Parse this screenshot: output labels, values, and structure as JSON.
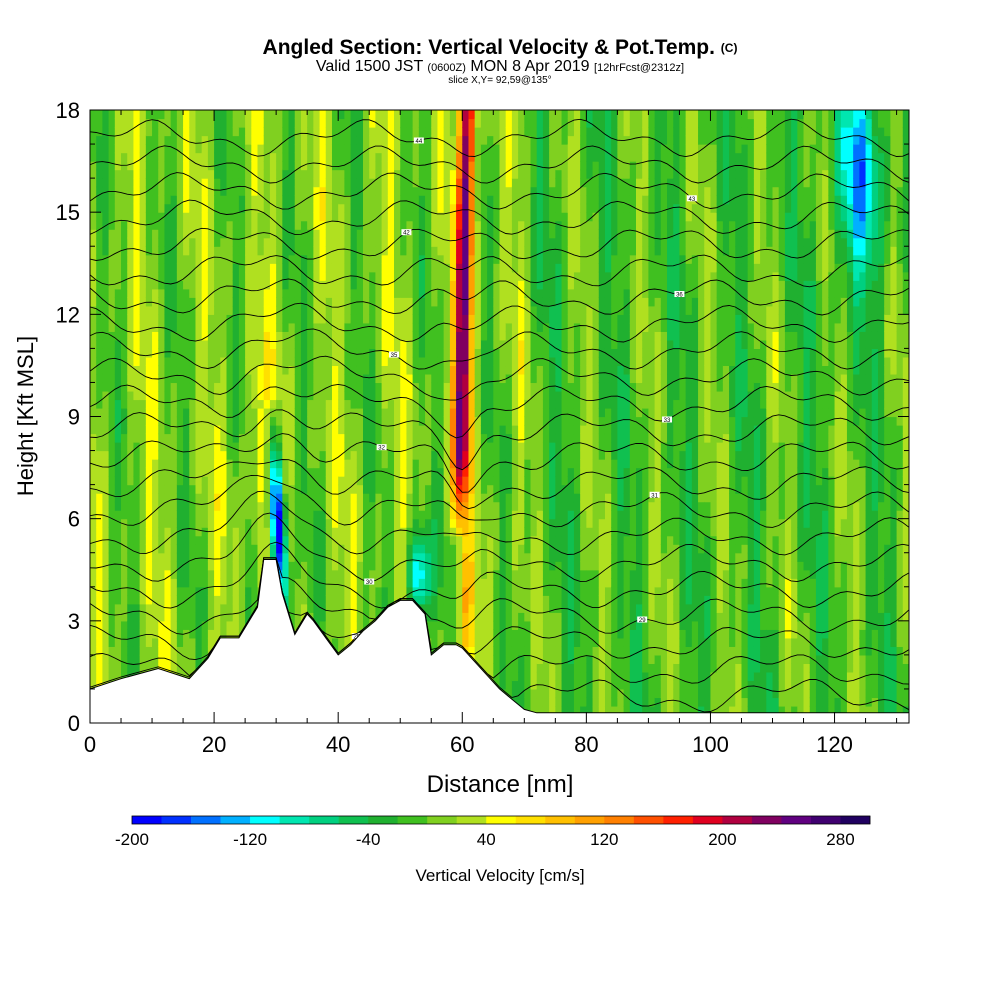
{
  "title": {
    "main": "Angled Section: Vertical Velocity & Pot.Temp.",
    "copyright": "(C)",
    "valid_prefix": "Valid 1500 JST",
    "valid_z": "(0600Z)",
    "valid_date": "MON 8 Apr 2019",
    "forecast": "[12hrFcst@2312z]",
    "slice": "slice X,Y= 92,59@135°"
  },
  "chart_data": {
    "type": "heatmap",
    "xlabel": "Distance [nm]",
    "ylabel": "Height [Kft MSL]",
    "xlim": [
      0,
      132
    ],
    "ylim": [
      0,
      18
    ],
    "x_ticks": [
      0,
      20,
      40,
      60,
      80,
      100,
      120
    ],
    "y_ticks": [
      0,
      3,
      6,
      9,
      12,
      15,
      18
    ],
    "colorbar": {
      "label": "Vertical Velocity [cm/s]",
      "min": -200,
      "max": 300,
      "step": 20,
      "tick_values": [
        -200,
        -120,
        -40,
        40,
        120,
        200,
        280
      ],
      "colors": [
        "#0000ff",
        "#0030ff",
        "#0070ff",
        "#00b0ff",
        "#00ffff",
        "#00e6b0",
        "#00d080",
        "#10c050",
        "#20b030",
        "#40c020",
        "#80d020",
        "#b0e020",
        "#ffff00",
        "#ffe000",
        "#ffc000",
        "#ffa000",
        "#ff8000",
        "#ff5000",
        "#ff2000",
        "#e00020",
        "#b00040",
        "#800060",
        "#600080",
        "#400070",
        "#200060"
      ]
    },
    "terrain_profile": {
      "x": [
        0,
        5,
        11,
        16,
        19,
        21,
        24,
        27,
        28,
        30,
        31,
        33,
        34,
        35,
        36,
        38,
        40,
        42,
        44,
        46,
        48,
        50,
        52,
        54,
        55,
        57,
        59,
        60,
        62,
        64,
        66,
        68,
        70,
        72,
        75,
        132
      ],
      "height": [
        1.0,
        1.3,
        1.6,
        1.3,
        1.9,
        2.5,
        2.5,
        3.4,
        4.8,
        4.8,
        3.8,
        2.6,
        2.9,
        3.2,
        3.0,
        2.5,
        2.0,
        2.3,
        2.7,
        3.0,
        3.4,
        3.6,
        3.6,
        3.2,
        2.0,
        2.3,
        2.3,
        2.2,
        1.8,
        1.4,
        1.0,
        0.7,
        0.4,
        0.3,
        0.3,
        0.3
      ]
    },
    "vertical_velocity_features": [
      {
        "name": "updraft core",
        "x_center": 60,
        "height_range": [
          6,
          18
        ],
        "peak": 260
      },
      {
        "name": "downdraft core",
        "x_center": 31,
        "height_range": [
          3.5,
          9
        ],
        "peak": -200
      },
      {
        "name": "downdraft",
        "x_center": 53,
        "height_range": [
          3,
          6
        ],
        "peak": -140
      },
      {
        "name": "sinking band",
        "x_center": 123,
        "height_range": [
          12,
          18
        ],
        "peak": -100
      }
    ],
    "potential_temperature_contours": {
      "count": 22,
      "labels": [
        "25",
        "29",
        "30",
        "31",
        "32",
        "33",
        "35",
        "36",
        "42",
        "43",
        "44"
      ]
    }
  }
}
